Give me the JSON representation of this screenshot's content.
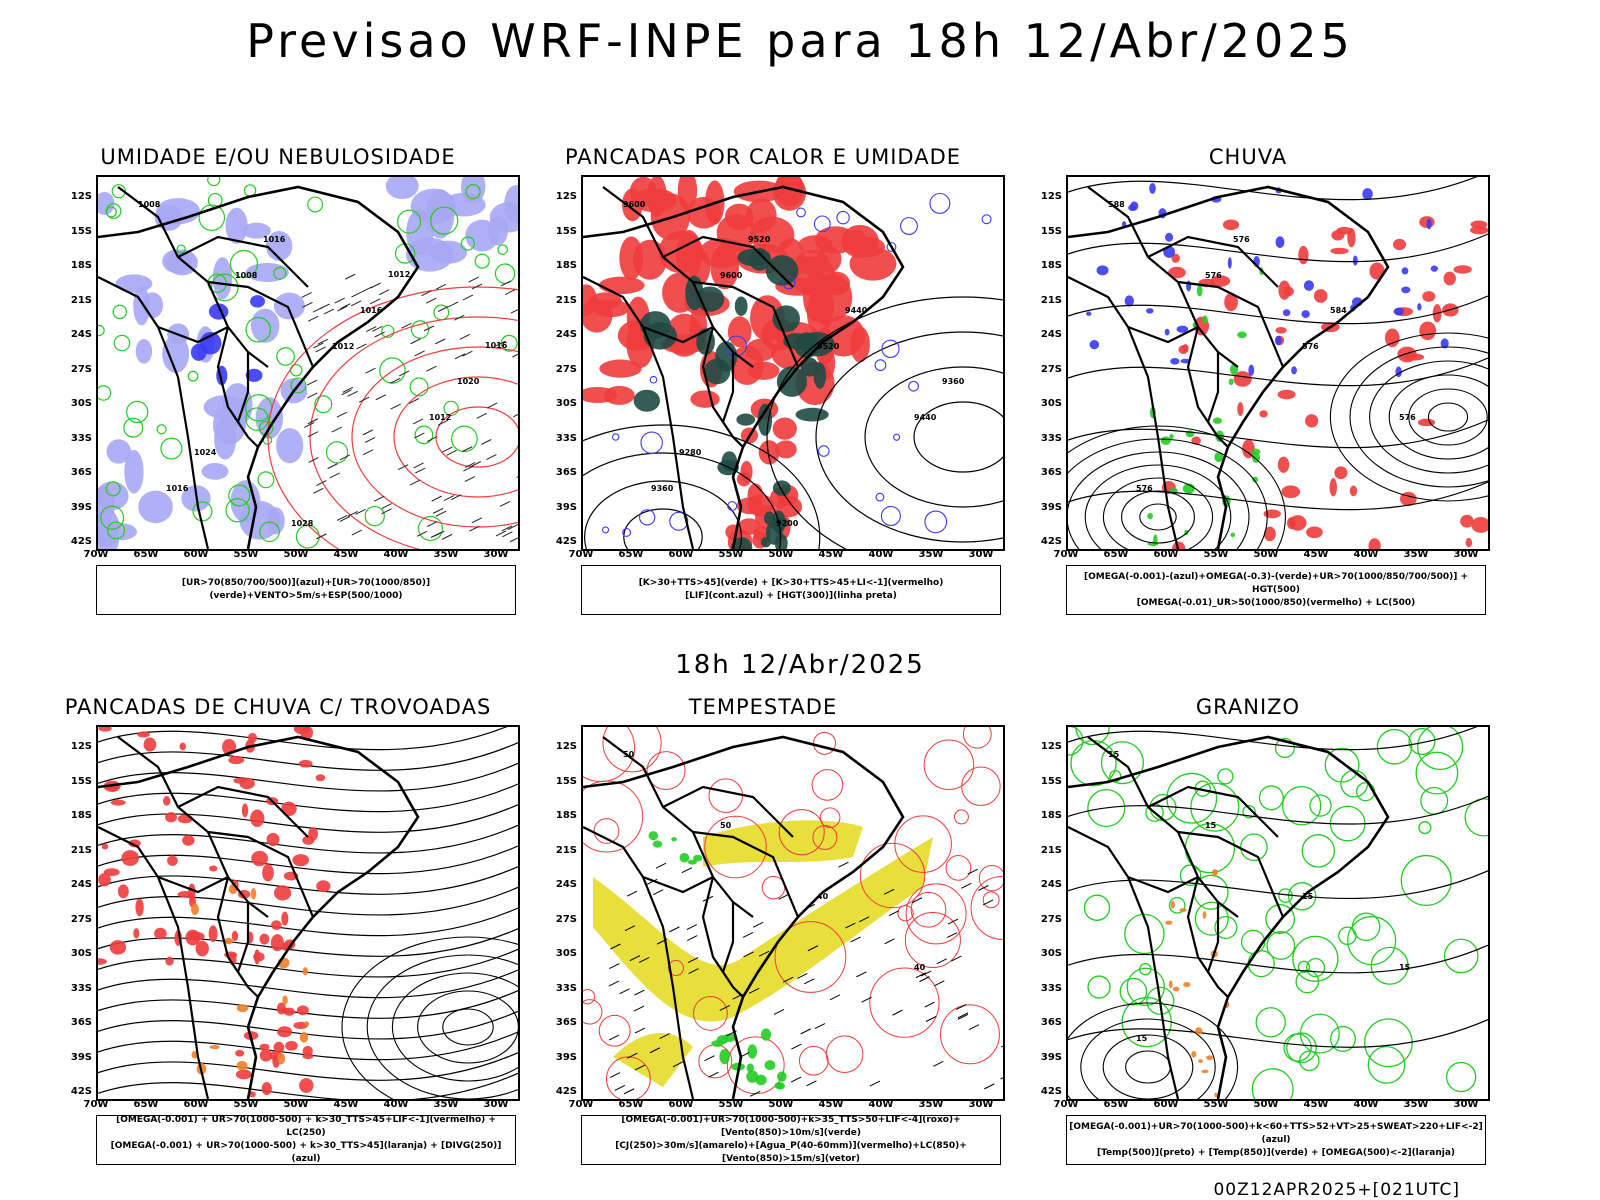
{
  "title": "Previsao WRF-INPE  para 18h 12/Abr/2025",
  "mid_label": "18h 12/Abr/2025",
  "footer": "00Z12APR2025+[021UTC]",
  "lat_ticks": [
    "12S",
    "15S",
    "18S",
    "21S",
    "24S",
    "27S",
    "30S",
    "33S",
    "36S",
    "39S",
    "42S"
  ],
  "lon_ticks": [
    "70W",
    "65W",
    "60W",
    "55W",
    "50W",
    "45W",
    "40W",
    "35W",
    "30W"
  ],
  "colors": {
    "red": "#f03c3c",
    "green": "#22cc22",
    "blue": "#3a3af5",
    "lavender": "#a7a7f5",
    "darkteal": "#1f4a44",
    "yellow": "#e6dc28",
    "orange": "#f07f28"
  },
  "panels": [
    {
      "title": "UMIDADE E/OU NEBULOSIDADE",
      "legend": [
        "[UR>70(850/700/500)](azul)+[UR>70(1000/850)](verde)+VENTO>5m/s+ESP(500/1000)"
      ],
      "labels": [
        "1008",
        "1008",
        "1012",
        "1012",
        "1016",
        "1016",
        "1016",
        "1020",
        "1024",
        "1028",
        "1012",
        "1016"
      ]
    },
    {
      "title": "PANCADAS POR CALOR E UMIDADE",
      "legend": [
        "[K>30+TTS>45](verde) + [K>30+TTS>45+LI<-1](vermelho)",
        "[LIF](cont.azul) + [HGT(300)](linha preta)"
      ],
      "labels": [
        "9600",
        "9600",
        "9520",
        "9440",
        "9360",
        "9520",
        "9440",
        "9360",
        "9280",
        "9200"
      ]
    },
    {
      "title": "CHUVA",
      "legend": [
        "[OMEGA(-0.001)-(azul)+OMEGA(-0.3)-(verde)+UR>70(1000/850/700/500)] + HGT(500)",
        "[OMEGA(-0.01)_UR>50(1000/850)(vermelho) + LC(500)"
      ],
      "labels": [
        "588",
        "576",
        "576",
        "576",
        "576",
        "576",
        "584"
      ]
    },
    {
      "title": "PANCADAS DE CHUVA C/ TROVOADAS",
      "legend": [
        "[OMEGA(-0.001) + UR>70(1000-500) + k>30_TTS>45+LIF<-1](vermelho) + LC(250)",
        "[OMEGA(-0.001) + UR>70(1000-500) + k>30_TTS>45](laranja) + [DIVG(250)](azul)"
      ],
      "labels": []
    },
    {
      "title": "TEMPESTADE",
      "legend": [
        "[OMEGA(-0.001)+UR>70(1000-500)+k>35_TTS>50+LIF<-4](roxo)+[Vento(850)>10m/s](verde)",
        "[CJ(250)>30m/s](amarelo)+[Agua_P(40-60mm)](vermelho)+LC(850)+[Vento(850)>15m/s](vetor)"
      ],
      "labels": [
        "50",
        "50",
        "40",
        "40"
      ]
    },
    {
      "title": "GRANIZO",
      "legend": [
        "[OMEGA(-0.001)+UR>70(1000-500)+k<60+TTS>52+VT>25+SWEAT>220+LIF<-2](azul)",
        "[Temp(500)](preto) + [Temp(850)](verde) + [OMEGA(500)<-2](laranja)"
      ],
      "labels": [
        "15",
        "15",
        "15",
        "15",
        "15"
      ]
    }
  ]
}
